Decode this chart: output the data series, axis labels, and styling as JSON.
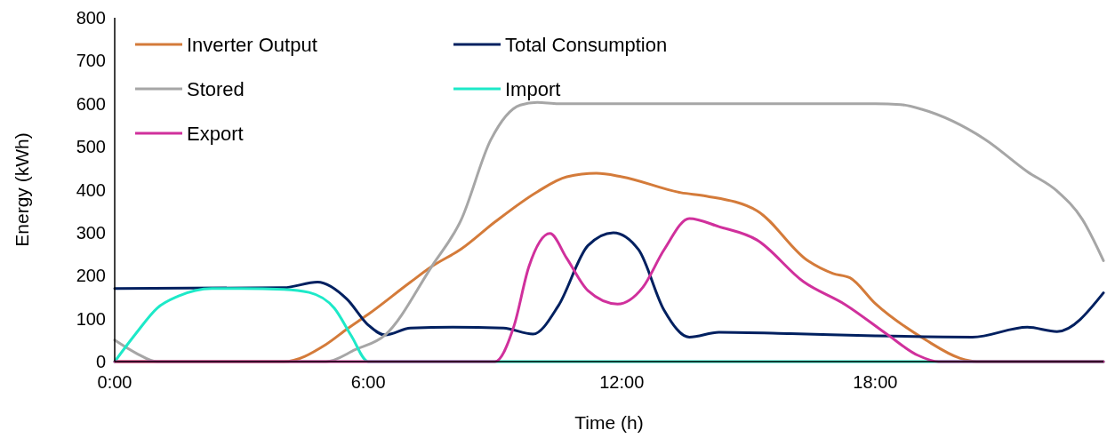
{
  "chart_data": {
    "type": "line",
    "xlabel": "Time (h)",
    "ylabel": "Energy (kWh)",
    "xlim": [
      0,
      23.4
    ],
    "xticks": [
      {
        "value": 0,
        "label": "0:00"
      },
      {
        "value": 6,
        "label": "6:00"
      },
      {
        "value": 12,
        "label": "12:00"
      },
      {
        "value": 18,
        "label": "18:00"
      }
    ],
    "ylim": [
      0,
      800
    ],
    "yticks": [
      0,
      100,
      200,
      300,
      400,
      500,
      600,
      700,
      800
    ],
    "grid": false,
    "legend": "top left",
    "marker": "none",
    "line_style": "solid",
    "series": [
      {
        "name": "Inverter Output",
        "color": "#d47b3a",
        "x": [
          0,
          4,
          5,
          5.5,
          6,
          7,
          7.5,
          8.2,
          9,
          10,
          10.7,
          11.4,
          12,
          13.4,
          14,
          15.2,
          16.4,
          17,
          17.4,
          18,
          19.2,
          20,
          20.4,
          23.4
        ],
        "values": [
          0,
          0,
          40,
          76,
          110,
          185,
          221,
          262,
          325,
          395,
          430,
          438,
          430,
          393,
          385,
          351,
          235,
          205,
          195,
          135,
          50,
          8,
          0,
          0
        ]
      },
      {
        "name": "Total Consumption",
        "color": "#002060",
        "x": [
          0,
          4,
          4.8,
          5.5,
          6,
          6.4,
          7,
          8,
          9.2,
          9.9,
          10.5,
          11.2,
          11.8,
          12.4,
          13,
          13.6,
          14.3,
          16,
          18,
          20.3,
          21.6,
          22.3,
          23.4
        ],
        "values": [
          170,
          172,
          185,
          145,
          85,
          62,
          78,
          80,
          78,
          64,
          130,
          270,
          300,
          260,
          120,
          57,
          68,
          65,
          60,
          57,
          80,
          70,
          160
        ]
      },
      {
        "name": "Stored",
        "color": "#a6a6a6",
        "x": [
          0,
          0.5,
          1,
          5,
          5.7,
          6.4,
          7.5,
          8.2,
          8.9,
          9.6,
          10,
          10.5,
          18,
          18.6,
          19.1,
          20.6,
          21.6,
          22.3,
          22.9,
          23.4
        ],
        "values": [
          50,
          20,
          0,
          0,
          28,
          62,
          221,
          330,
          516,
          597,
          603,
          600,
          600,
          598,
          587,
          517,
          442,
          397,
          331,
          235
        ]
      },
      {
        "name": "Import",
        "color": "#1de9c8",
        "x": [
          0,
          0.5,
          1,
          1.5,
          2.3,
          3,
          4,
          4.6,
          5.2,
          5.6,
          6,
          23.4
        ],
        "values": [
          0,
          65,
          124,
          152,
          170,
          170,
          168,
          161,
          124,
          60,
          0,
          0
        ]
      },
      {
        "name": "Export",
        "color": "#d0309c",
        "x": [
          0,
          9,
          9.45,
          9.8,
          10.3,
          10.7,
          11.2,
          11.9,
          12.5,
          13,
          13.6,
          14.3,
          15.2,
          16.3,
          17.3,
          18.3,
          19,
          19.5,
          23.4
        ],
        "values": [
          0,
          0,
          83,
          220,
          298,
          240,
          165,
          134,
          173,
          260,
          333,
          314,
          283,
          186,
          132,
          62,
          15,
          0,
          0
        ]
      }
    ]
  }
}
